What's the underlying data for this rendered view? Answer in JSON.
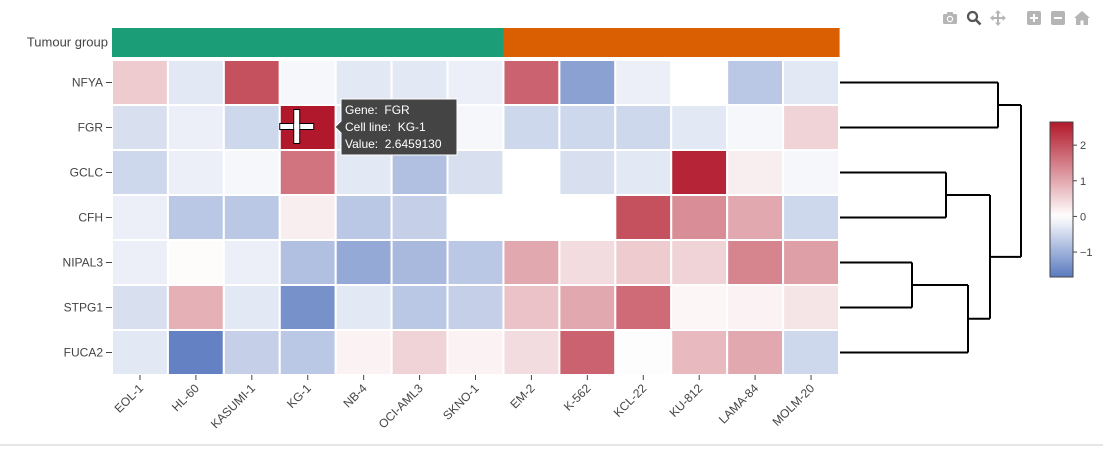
{
  "modebar": {
    "buttons": [
      {
        "icon": "camera-icon",
        "title": "Download plot as a png"
      },
      {
        "icon": "zoom-icon",
        "title": "Zoom"
      },
      {
        "icon": "pan-icon",
        "title": "Pan"
      },
      {
        "icon": "zoom-in-icon",
        "title": "Zoom in"
      },
      {
        "icon": "zoom-out-icon",
        "title": "Zoom out"
      },
      {
        "icon": "home-icon",
        "title": "Reset axes"
      }
    ]
  },
  "tooltip": {
    "gene_label": "Gene:",
    "gene": "FGR",
    "cell_label": "Cell line:",
    "cell": "KG-1",
    "value_label": "Value:",
    "value": "2.6459130"
  },
  "colors": {
    "green_group": "#1b9e77",
    "orange_group": "#d95f02",
    "dendrogram": "#000000",
    "tooltip_bg": "#444444"
  },
  "chart_data": {
    "type": "heatmap",
    "annotation_label": "Tumour group",
    "annotation_groups": [
      "green",
      "green",
      "green",
      "green",
      "green",
      "green",
      "green",
      "orange",
      "orange",
      "orange",
      "orange",
      "orange",
      "orange"
    ],
    "rows": [
      "NFYA",
      "FGR",
      "GCLC",
      "CFH",
      "NIPAL3",
      "STPG1",
      "FUCA2"
    ],
    "columns": [
      "EOL-1",
      "HL-60",
      "KASUMI-1",
      "KG-1",
      "NB-4",
      "OCI-AML3",
      "SKNO-1",
      "EM-2",
      "K-562",
      "KCL-22",
      "KU-812",
      "LAMA-84",
      "MOLM-20"
    ],
    "values": [
      [
        0.6,
        -0.3,
        2.0,
        -0.1,
        -0.3,
        -0.3,
        -0.2,
        1.8,
        -1.2,
        -0.2,
        0.0,
        -0.7,
        -0.3
      ],
      [
        -0.4,
        -0.2,
        -0.5,
        2.645913,
        -0.3,
        -0.2,
        -0.1,
        -0.5,
        -0.5,
        -0.5,
        -0.3,
        -0.1,
        0.5
      ],
      [
        -0.5,
        -0.2,
        -0.1,
        1.6,
        -0.3,
        -0.8,
        -0.4,
        0.0,
        -0.4,
        -0.3,
        2.5,
        0.2,
        -0.1
      ],
      [
        -0.2,
        -0.7,
        -0.7,
        0.2,
        -0.7,
        -0.6,
        0.0,
        0.0,
        0.0,
        2.0,
        1.3,
        1.0,
        -0.5
      ],
      [
        -0.2,
        0.05,
        -0.2,
        -0.8,
        -1.1,
        -0.9,
        -0.7,
        1.0,
        0.4,
        0.6,
        0.5,
        1.4,
        1.1
      ],
      [
        -0.4,
        0.9,
        -0.3,
        -1.4,
        -0.3,
        -0.7,
        -0.6,
        0.7,
        1.0,
        1.7,
        0.1,
        0.15,
        0.3
      ],
      [
        -0.3,
        -1.6,
        -0.6,
        -0.7,
        0.15,
        0.5,
        0.15,
        0.4,
        1.8,
        0.02,
        0.8,
        1.0,
        -0.5
      ]
    ],
    "colorbar": {
      "ticks": [
        2,
        1,
        0,
        -1
      ],
      "tick_labels": [
        "2",
        "1",
        "0",
        "−1"
      ],
      "min": -1.7,
      "max": 2.65
    },
    "colorscale": [
      [
        -1.7,
        "#5a7abf"
      ],
      [
        0,
        "#ffffff"
      ],
      [
        2.65,
        "#b2182b"
      ]
    ],
    "dendrogram_links": [
      {
        "rows": [
          "NFYA",
          "FGR"
        ]
      },
      {
        "rows": [
          "GCLC",
          "CFH"
        ]
      },
      {
        "rows": [
          "NIPAL3",
          "STPG1"
        ]
      },
      {
        "rows": [
          "NIPAL3",
          "STPG1",
          "FUCA2"
        ]
      },
      {
        "rows": [
          "GCLC",
          "CFH",
          "NIPAL3",
          "STPG1",
          "FUCA2"
        ]
      },
      {
        "rows": [
          "NFYA",
          "FGR",
          "GCLC",
          "CFH",
          "NIPAL3",
          "STPG1",
          "FUCA2"
        ]
      }
    ],
    "xlabel": "",
    "ylabel": "",
    "title": ""
  }
}
